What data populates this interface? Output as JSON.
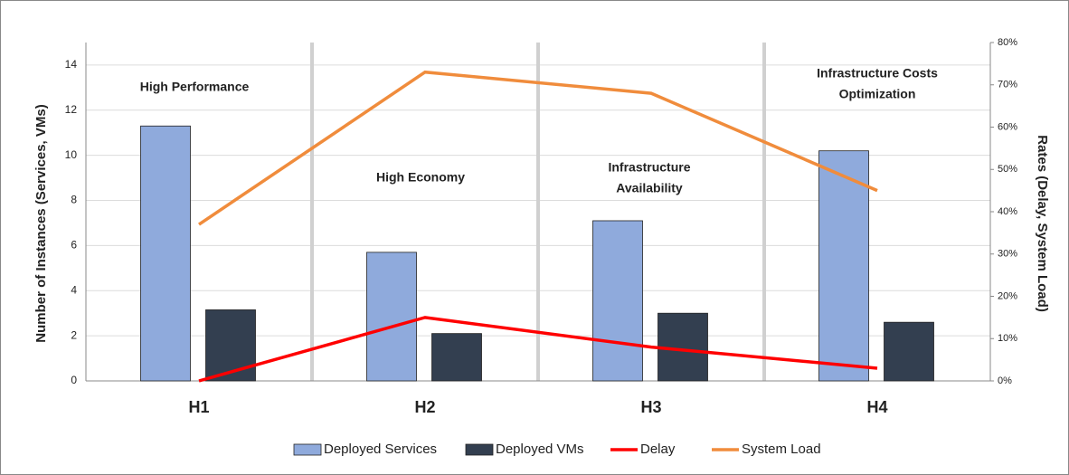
{
  "chart_data": {
    "type": "bar",
    "categories": [
      "H1",
      "H2",
      "H3",
      "H4"
    ],
    "series": [
      {
        "name": "Deployed Services",
        "color": "#8faadc",
        "values": [
          11.3,
          5.7,
          7.1,
          10.2
        ]
      },
      {
        "name": "Deployed VMs",
        "color": "#333f50",
        "values": [
          3.15,
          2.1,
          3.0,
          2.6
        ]
      },
      {
        "name": "Delay",
        "color": "#ff0000",
        "axis": "y2",
        "type": "line",
        "values": [
          0,
          15,
          8,
          3
        ]
      },
      {
        "name": "System Load",
        "color": "#f08c3c",
        "axis": "y2",
        "type": "line",
        "values": [
          37,
          73,
          68,
          45
        ]
      }
    ],
    "ylabel": "Number of Instances (Services, VMs)",
    "y2label": "Rates (Delay, System Load)",
    "ylim": [
      0,
      15
    ],
    "yticks": [
      0,
      2,
      4,
      6,
      8,
      10,
      12,
      14
    ],
    "y2lim": [
      0,
      80
    ],
    "y2ticks": [
      {
        "value": 0,
        "label": "0%"
      },
      {
        "value": 10,
        "label": "10%"
      },
      {
        "value": 20,
        "label": "20%"
      },
      {
        "value": 30,
        "label": "30%"
      },
      {
        "value": 40,
        "label": "40%"
      },
      {
        "value": 50,
        "label": "50%"
      },
      {
        "value": 60,
        "label": "60%"
      },
      {
        "value": 70,
        "label": "70%"
      },
      {
        "value": 80,
        "label": "80%"
      }
    ],
    "annotations": [
      [
        "High Performance"
      ],
      [
        "High Economy"
      ],
      [
        "Infrastructure",
        "Availability"
      ],
      [
        "Infrastructure Costs",
        "Optimization"
      ]
    ],
    "grid": true,
    "legend": "bottom"
  }
}
